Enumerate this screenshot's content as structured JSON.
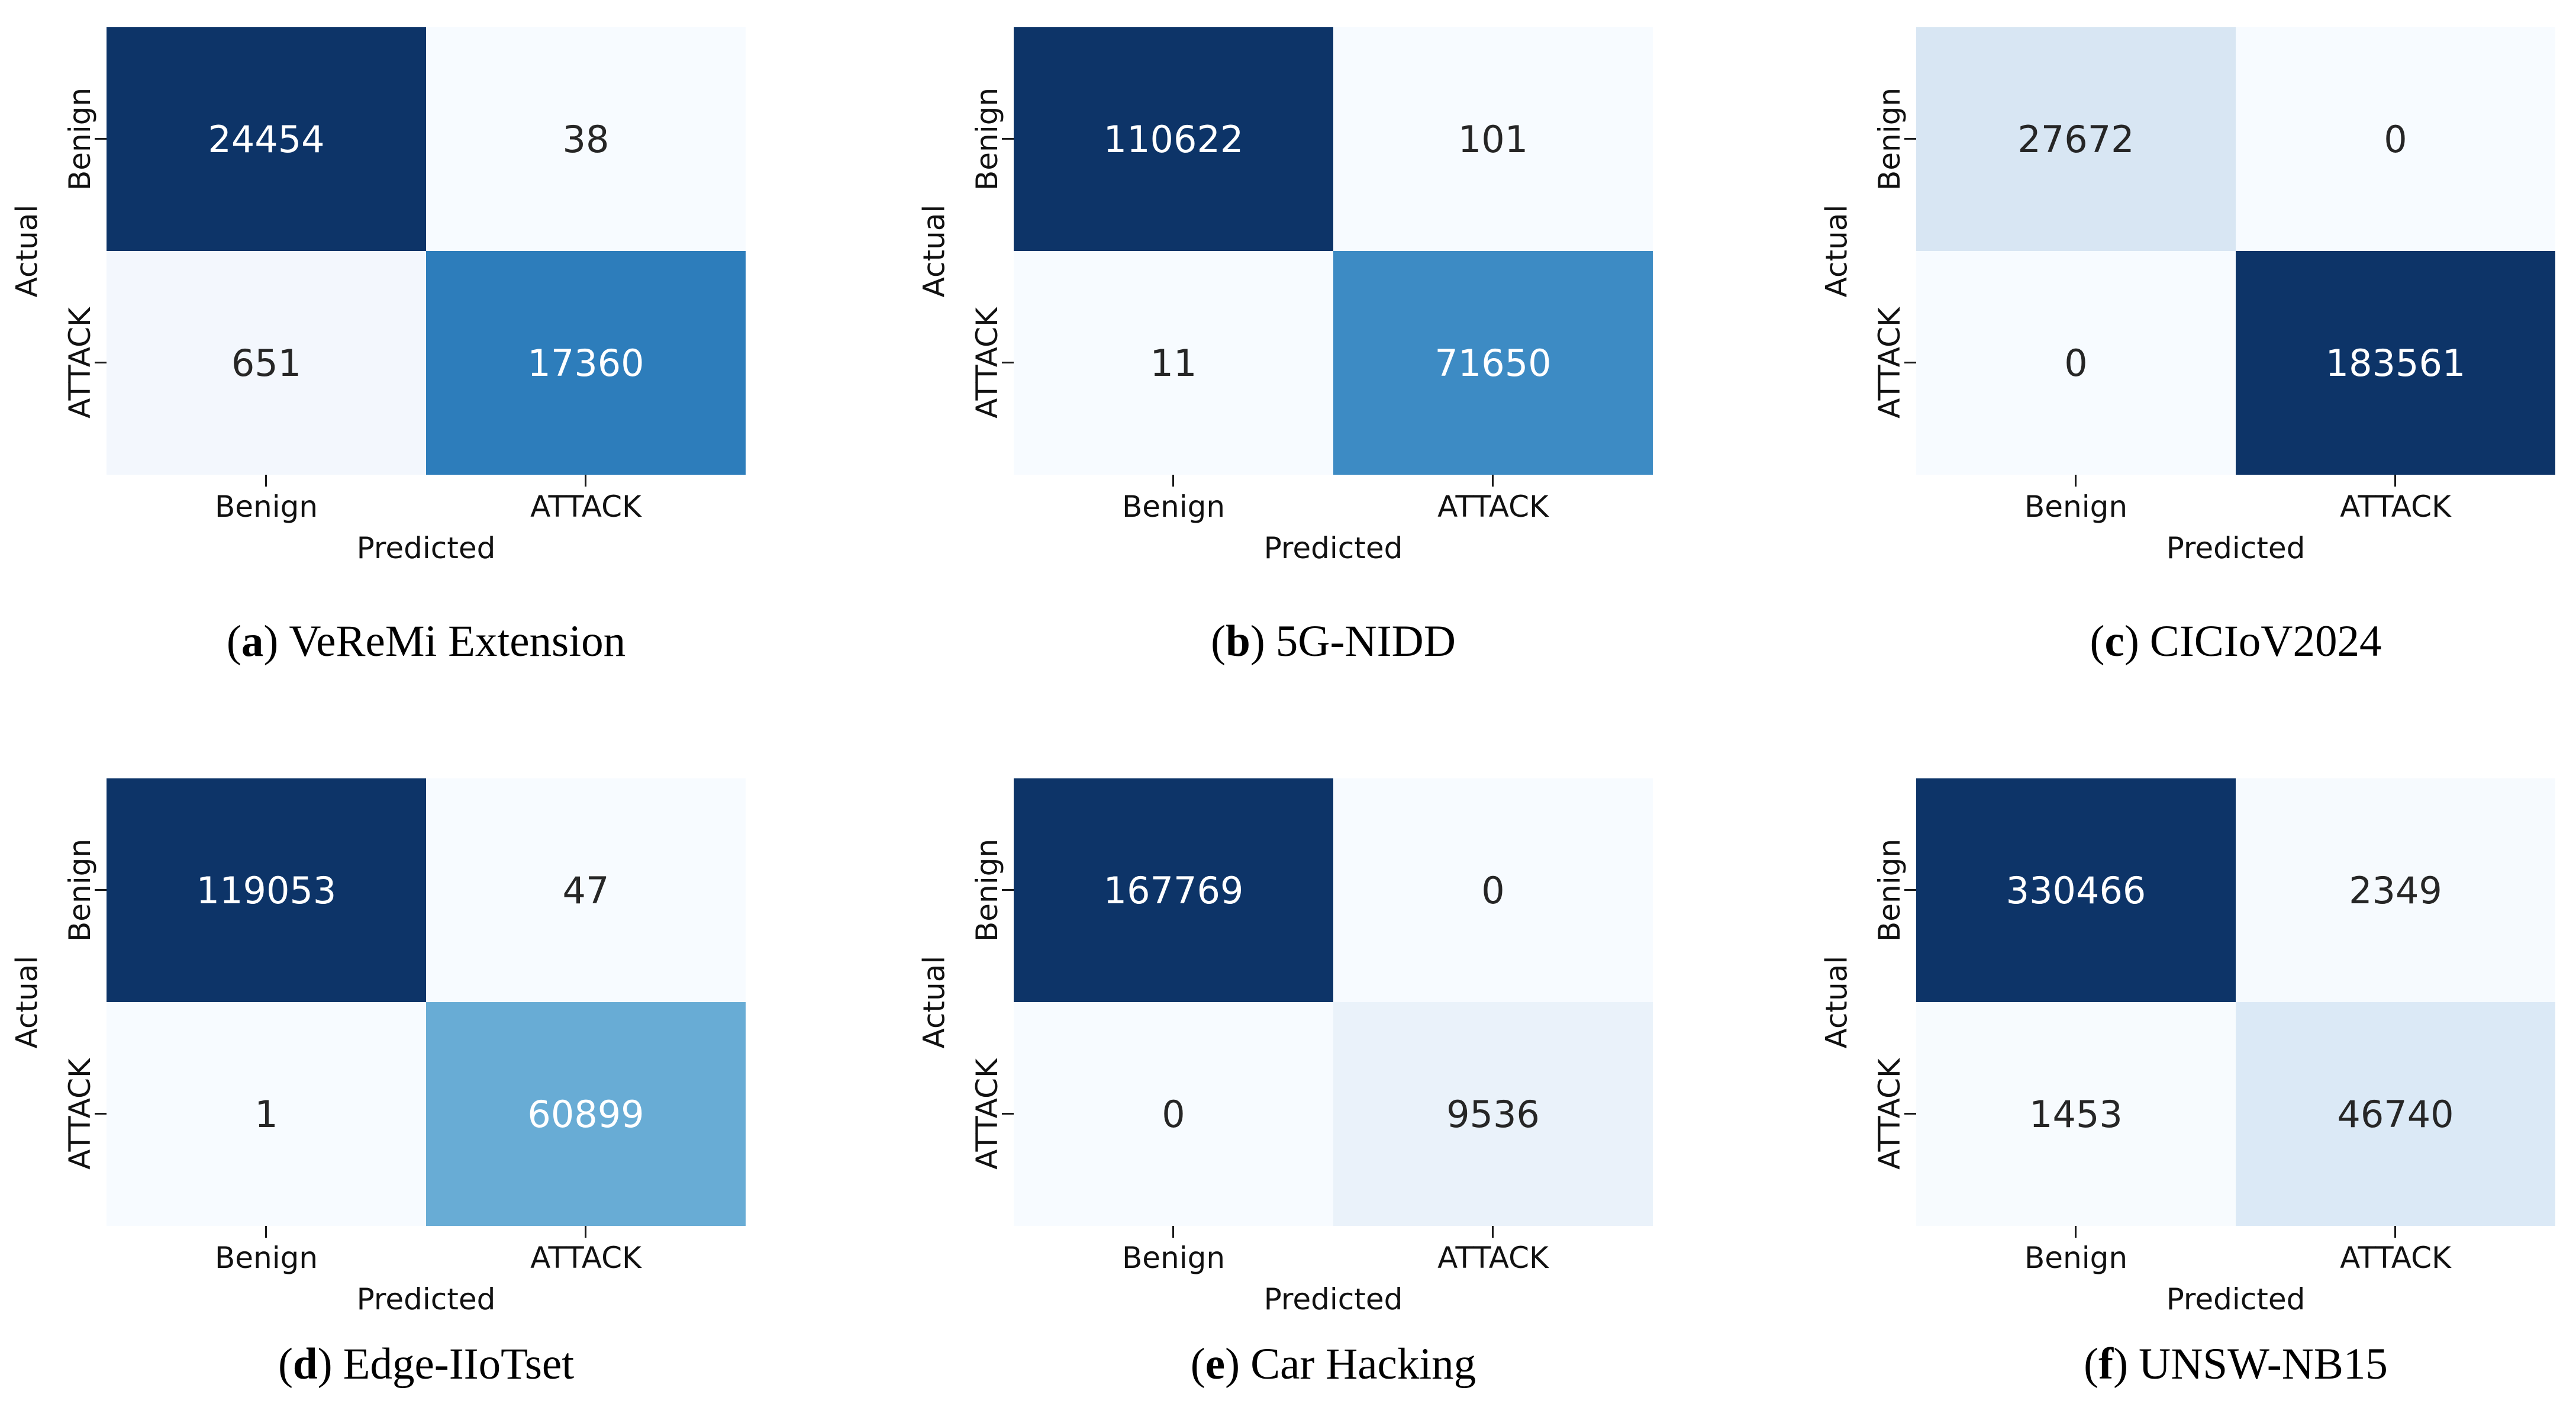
{
  "chart_data": [
    {
      "type": "heatmap",
      "panel": "a",
      "title": "VeReMi Extension",
      "xlabel": "Predicted",
      "ylabel": "Actual",
      "rows": [
        "Benign",
        "ATTACK"
      ],
      "cols": [
        "Benign",
        "ATTACK"
      ],
      "values": [
        [
          24454,
          38
        ],
        [
          651,
          17360
        ]
      ],
      "colormap": "Blues",
      "annotated": true
    },
    {
      "type": "heatmap",
      "panel": "b",
      "title": "5G-NIDD",
      "xlabel": "Predicted",
      "ylabel": "Actual",
      "rows": [
        "Benign",
        "ATTACK"
      ],
      "cols": [
        "Benign",
        "ATTACK"
      ],
      "values": [
        [
          110622,
          101
        ],
        [
          11,
          71650
        ]
      ],
      "colormap": "Blues",
      "annotated": true
    },
    {
      "type": "heatmap",
      "panel": "c",
      "title": "CICIoV2024",
      "xlabel": "Predicted",
      "ylabel": "Actual",
      "rows": [
        "Benign",
        "ATTACK"
      ],
      "cols": [
        "Benign",
        "ATTACK"
      ],
      "values": [
        [
          27672,
          0
        ],
        [
          0,
          183561
        ]
      ],
      "colormap": "Blues",
      "annotated": true
    },
    {
      "type": "heatmap",
      "panel": "d",
      "title": "Edge-IIoTset",
      "xlabel": "Predicted",
      "ylabel": "Actual",
      "rows": [
        "Benign",
        "ATTACK"
      ],
      "cols": [
        "Benign",
        "ATTACK"
      ],
      "values": [
        [
          119053,
          47
        ],
        [
          1,
          60899
        ]
      ],
      "colormap": "Blues",
      "annotated": true
    },
    {
      "type": "heatmap",
      "panel": "e",
      "title": "Car Hacking",
      "xlabel": "Predicted",
      "ylabel": "Actual",
      "rows": [
        "Benign",
        "ATTACK"
      ],
      "cols": [
        "Benign",
        "ATTACK"
      ],
      "values": [
        [
          167769,
          0
        ],
        [
          0,
          9536
        ]
      ],
      "colormap": "Blues",
      "annotated": true
    },
    {
      "type": "heatmap",
      "panel": "f",
      "title": "UNSW-NB15",
      "xlabel": "Predicted",
      "ylabel": "Actual",
      "rows": [
        "Benign",
        "ATTACK"
      ],
      "cols": [
        "Benign",
        "ATTACK"
      ],
      "values": [
        [
          330466,
          2349
        ],
        [
          1453,
          46740
        ]
      ],
      "colormap": "Blues",
      "annotated": true
    }
  ],
  "figure": {
    "background": "#ffffff",
    "axes": {
      "y_label": "Actual",
      "x_label": "Predicted",
      "row_ticks": [
        "Benign",
        "ATTACK"
      ],
      "col_ticks": [
        "Benign",
        "ATTACK"
      ]
    },
    "caption_parens": {
      "open": "(",
      "close": ")"
    },
    "colors": {
      "dark_max": "#0d3468",
      "light_min": "#f7fbff",
      "tick": "#1a1a1a",
      "annot_dark_text": "#262626",
      "annot_light_text": "#ffffff"
    },
    "panels": [
      {
        "letter": "a",
        "name": "VeReMi Extension",
        "cells": [
          {
            "value": "24454",
            "bg": "#0d3468",
            "fg": "#ffffff"
          },
          {
            "value": "38",
            "bg": "#f7fbff",
            "fg": "#262626"
          },
          {
            "value": "651",
            "bg": "#f3f7fd",
            "fg": "#262626"
          },
          {
            "value": "17360",
            "bg": "#2d7dbb",
            "fg": "#ffffff"
          }
        ]
      },
      {
        "letter": "b",
        "name": "5G-NIDD",
        "cells": [
          {
            "value": "110622",
            "bg": "#0d3468",
            "fg": "#ffffff"
          },
          {
            "value": "101",
            "bg": "#f7fbff",
            "fg": "#262626"
          },
          {
            "value": "11",
            "bg": "#f7fbff",
            "fg": "#262626"
          },
          {
            "value": "71650",
            "bg": "#3d8bc4",
            "fg": "#ffffff"
          }
        ]
      },
      {
        "letter": "c",
        "name": "CICIoV2024",
        "cells": [
          {
            "value": "27672",
            "bg": "#d8e6f3",
            "fg": "#262626"
          },
          {
            "value": "0",
            "bg": "#f7fbff",
            "fg": "#262626"
          },
          {
            "value": "0",
            "bg": "#f7fbff",
            "fg": "#262626"
          },
          {
            "value": "183561",
            "bg": "#0d3468",
            "fg": "#ffffff"
          }
        ]
      },
      {
        "letter": "d",
        "name": "Edge-IIoTset",
        "cells": [
          {
            "value": "119053",
            "bg": "#0d3468",
            "fg": "#ffffff"
          },
          {
            "value": "47",
            "bg": "#f7fbff",
            "fg": "#262626"
          },
          {
            "value": "1",
            "bg": "#f7fbff",
            "fg": "#262626"
          },
          {
            "value": "60899",
            "bg": "#68acd5",
            "fg": "#ffffff"
          }
        ]
      },
      {
        "letter": "e",
        "name": "Car Hacking",
        "cells": [
          {
            "value": "167769",
            "bg": "#0d3468",
            "fg": "#ffffff"
          },
          {
            "value": "0",
            "bg": "#f7fbff",
            "fg": "#262626"
          },
          {
            "value": "0",
            "bg": "#f7fbff",
            "fg": "#262626"
          },
          {
            "value": "9536",
            "bg": "#eaf2fa",
            "fg": "#262626"
          }
        ]
      },
      {
        "letter": "f",
        "name": "UNSW-NB15",
        "cells": [
          {
            "value": "330466",
            "bg": "#0d3468",
            "fg": "#ffffff"
          },
          {
            "value": "2349",
            "bg": "#f6fafe",
            "fg": "#262626"
          },
          {
            "value": "1453",
            "bg": "#f7fbfe",
            "fg": "#262626"
          },
          {
            "value": "46740",
            "bg": "#dbe9f6",
            "fg": "#262626"
          }
        ]
      }
    ]
  }
}
